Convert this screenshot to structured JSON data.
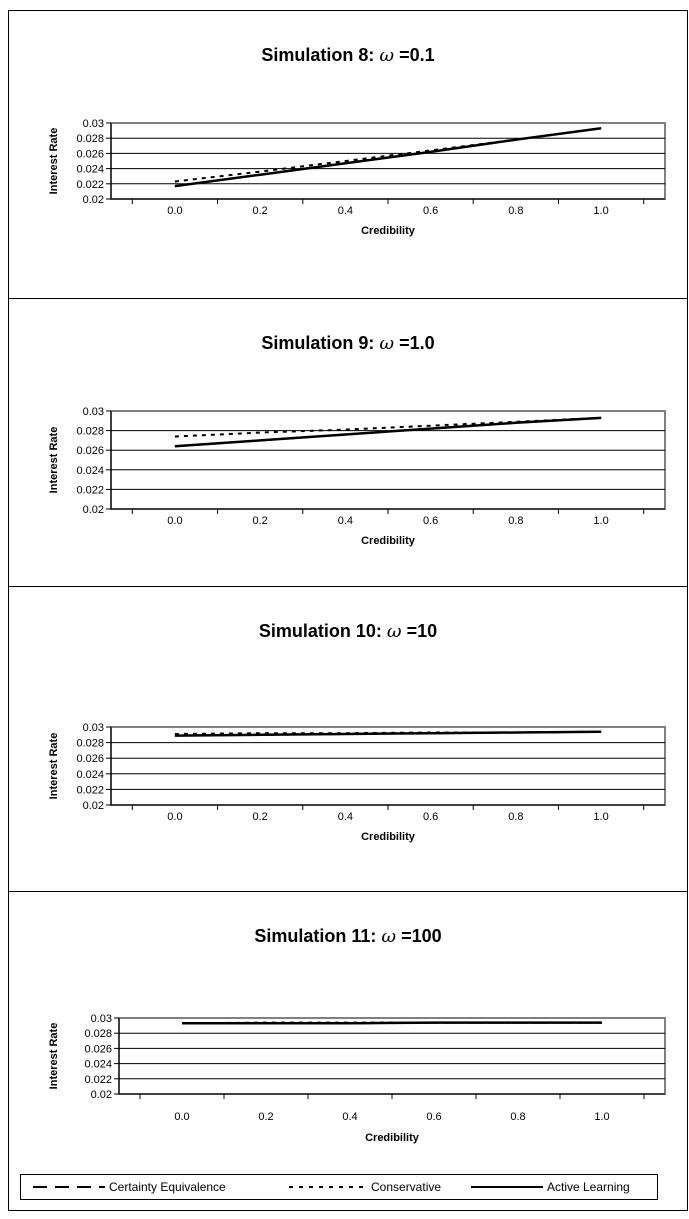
{
  "chart_data": [
    {
      "type": "line",
      "title_main": "Simulation 8: ",
      "title_sym": "ω",
      "title_tail": " =0.1",
      "xlabel": "Credibility",
      "ylabel": "Interest Rate",
      "ylim": [
        0.02,
        0.03
      ],
      "yticks": [
        "0.02",
        "0.022",
        "0.024",
        "0.026",
        "0.028",
        "0.03"
      ],
      "xlim": [
        -0.15,
        1.15
      ],
      "xticks": [
        "0.0",
        "0.2",
        "0.4",
        "0.6",
        "0.8",
        "1.0"
      ],
      "grid": true,
      "x": [
        0.0,
        0.2,
        0.4,
        0.6,
        0.8,
        1.0
      ],
      "series": [
        {
          "name": "Certainty Equivalence",
          "style": "longdash",
          "values": [
            0.0217,
            0.0232,
            0.0247,
            0.0262,
            0.0278,
            0.0293
          ]
        },
        {
          "name": "Conservative",
          "style": "dotted",
          "values": [
            0.0223,
            0.0236,
            0.025,
            0.0264,
            0.0278,
            0.0293
          ]
        },
        {
          "name": "Active Learning",
          "style": "solid",
          "values": [
            0.0217,
            0.0232,
            0.0247,
            0.0262,
            0.0278,
            0.0293
          ]
        }
      ]
    },
    {
      "type": "line",
      "title_main": "Simulation 9: ",
      "title_sym": "ω",
      "title_tail": " =1.0",
      "xlabel": "Credibility",
      "ylabel": "Interest Rate",
      "ylim": [
        0.02,
        0.03
      ],
      "yticks": [
        "0.02",
        "0.022",
        "0.024",
        "0.026",
        "0.028",
        "0.03"
      ],
      "xlim": [
        -0.15,
        1.15
      ],
      "xticks": [
        "0.0",
        "0.2",
        "0.4",
        "0.6",
        "0.8",
        "1.0"
      ],
      "grid": true,
      "x": [
        0.0,
        0.2,
        0.4,
        0.6,
        0.8,
        1.0
      ],
      "series": [
        {
          "name": "Certainty Equivalence",
          "style": "longdash",
          "values": [
            0.0264,
            0.027,
            0.0276,
            0.0282,
            0.0288,
            0.0293
          ]
        },
        {
          "name": "Conservative",
          "style": "dotted",
          "values": [
            0.0274,
            0.0278,
            0.0281,
            0.0285,
            0.0289,
            0.0293
          ]
        },
        {
          "name": "Active Learning",
          "style": "solid",
          "values": [
            0.0264,
            0.027,
            0.0276,
            0.0282,
            0.0288,
            0.0293
          ]
        }
      ]
    },
    {
      "type": "line",
      "title_main": "Simulation 10: ",
      "title_sym": "ω",
      "title_tail": " =10",
      "xlabel": "Credibility",
      "ylabel": "Interest Rate",
      "ylim": [
        0.02,
        0.03
      ],
      "yticks": [
        "0.02",
        "0.022",
        "0.024",
        "0.026",
        "0.028",
        "0.03"
      ],
      "xlim": [
        -0.15,
        1.15
      ],
      "xticks": [
        "0.0",
        "0.2",
        "0.4",
        "0.6",
        "0.8",
        "1.0"
      ],
      "grid": true,
      "x": [
        0.0,
        0.2,
        0.4,
        0.6,
        0.8,
        1.0
      ],
      "series": [
        {
          "name": "Certainty Equivalence",
          "style": "longdash",
          "values": [
            0.0289,
            0.029,
            0.0291,
            0.0292,
            0.0293,
            0.0294
          ]
        },
        {
          "name": "Conservative",
          "style": "dotted",
          "values": [
            0.0291,
            0.0292,
            0.0292,
            0.0293,
            0.0293,
            0.0294
          ]
        },
        {
          "name": "Active Learning",
          "style": "solid",
          "values": [
            0.0289,
            0.029,
            0.0291,
            0.0292,
            0.0293,
            0.0294
          ]
        }
      ]
    },
    {
      "type": "line",
      "title_main": "Simulation 11: ",
      "title_sym": "ω",
      "title_tail": " =100",
      "xlabel": "Credibility",
      "ylabel": "Interest Rate",
      "ylim": [
        0.02,
        0.03
      ],
      "yticks": [
        "0.02",
        "0.022",
        "0.024",
        "0.026",
        "0.028",
        "0.03"
      ],
      "xlim": [
        -0.15,
        1.15
      ],
      "xticks": [
        "0.0",
        "0.2",
        "0.4",
        "0.6",
        "0.8",
        "1.0"
      ],
      "grid": true,
      "x": [
        0.0,
        0.2,
        0.4,
        0.6,
        0.8,
        1.0
      ],
      "series": [
        {
          "name": "Certainty Equivalence",
          "style": "longdash",
          "values": [
            0.0293,
            0.0293,
            0.0293,
            0.0294,
            0.0294,
            0.0294
          ]
        },
        {
          "name": "Conservative",
          "style": "dotted",
          "values": [
            0.0293,
            0.0294,
            0.0294,
            0.0294,
            0.0294,
            0.0294
          ]
        },
        {
          "name": "Active Learning",
          "style": "solid",
          "values": [
            0.0293,
            0.0293,
            0.0293,
            0.0294,
            0.0294,
            0.0294
          ]
        }
      ]
    }
  ],
  "legend": {
    "items": [
      {
        "label": "Certainty Equivalence",
        "style": "longdash"
      },
      {
        "label": "Conservative",
        "style": "dotted"
      },
      {
        "label": "Active Learning",
        "style": "solid"
      }
    ]
  }
}
